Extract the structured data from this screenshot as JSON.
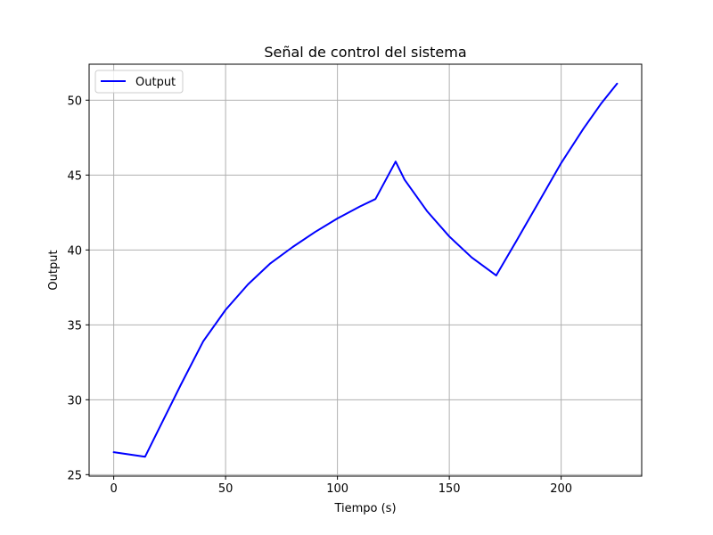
{
  "chart_data": {
    "type": "line",
    "title": "Señal de control del sistema",
    "xlabel": "Tiempo (s)",
    "ylabel": "Output",
    "xlim": [
      -11,
      236
    ],
    "ylim": [
      24.9,
      52.4
    ],
    "x_ticks": [
      0,
      50,
      100,
      150,
      200
    ],
    "y_ticks": [
      25,
      30,
      35,
      40,
      45,
      50
    ],
    "grid": true,
    "legend_position": "top-left",
    "series": [
      {
        "name": "Output",
        "color": "#0000ff",
        "x": [
          0,
          14,
          20,
          30,
          40,
          50,
          60,
          70,
          80,
          90,
          100,
          110,
          117,
          126,
          130,
          140,
          150,
          160,
          171,
          180,
          190,
          200,
          210,
          218,
          225
        ],
        "y": [
          26.5,
          26.2,
          28.0,
          31.0,
          33.9,
          36.0,
          37.7,
          39.1,
          40.2,
          41.2,
          42.1,
          42.9,
          43.4,
          45.9,
          44.7,
          42.6,
          40.9,
          39.5,
          38.3,
          40.6,
          43.2,
          45.8,
          48.1,
          49.8,
          51.1
        ]
      }
    ]
  }
}
